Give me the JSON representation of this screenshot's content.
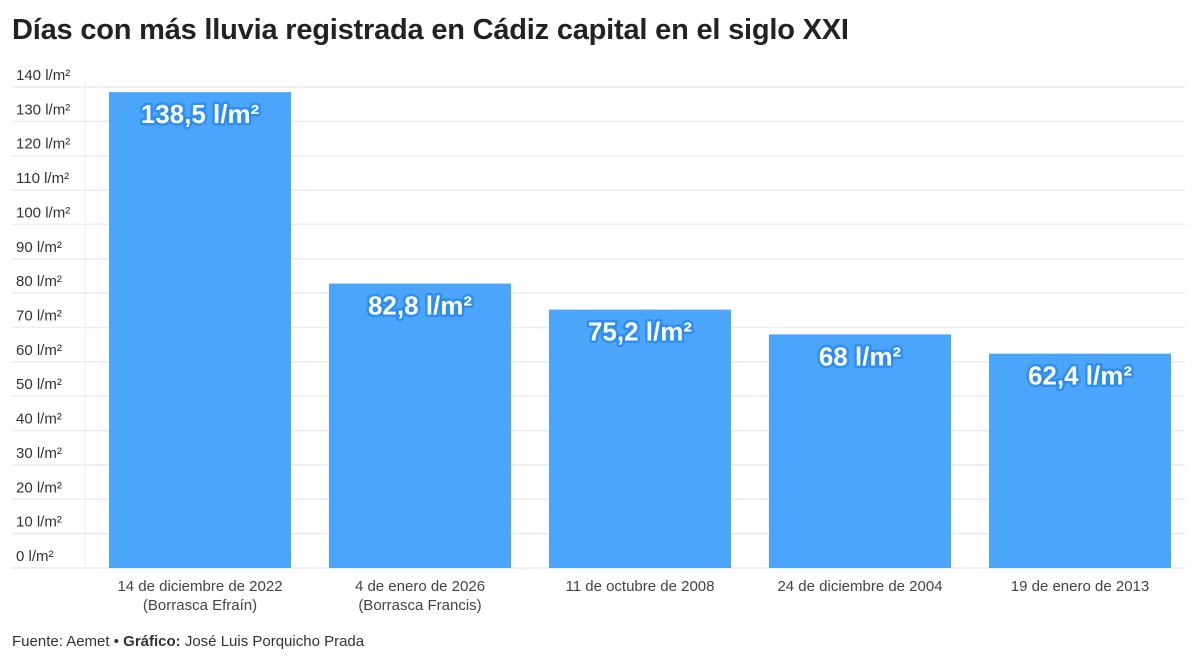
{
  "chart_data": {
    "type": "bar",
    "title": "Días con más lluvia registrada en Cádiz capital en el siglo XXI",
    "categories": [
      [
        "14 de diciembre de 2022",
        "(Borrasca Efraín)"
      ],
      [
        "4 de enero de 2026",
        "(Borrasca Francis)"
      ],
      [
        "11 de octubre de 2008"
      ],
      [
        "24 de diciembre de 2004"
      ],
      [
        "19 de enero de 2013"
      ]
    ],
    "values": [
      138.5,
      82.8,
      75.2,
      68,
      62.4
    ],
    "data_labels": [
      "138,5 l/m²",
      "82,8 l/m²",
      "75,2 l/m²",
      "68 l/m²",
      "62,4 l/m²"
    ],
    "ylim": [
      0,
      140
    ],
    "yticks": [
      0,
      10,
      20,
      30,
      40,
      50,
      60,
      70,
      80,
      90,
      100,
      110,
      120,
      130,
      140
    ],
    "ytick_suffix": " l/m²",
    "grid": true,
    "bar_color": "#4ba6fb",
    "label_glow_color": "#1a7ff0"
  },
  "footer": {
    "source": "Fuente: Aemet • ",
    "credit_label": "Gráfico:",
    "credit": " José Luis Porquicho Prada"
  }
}
